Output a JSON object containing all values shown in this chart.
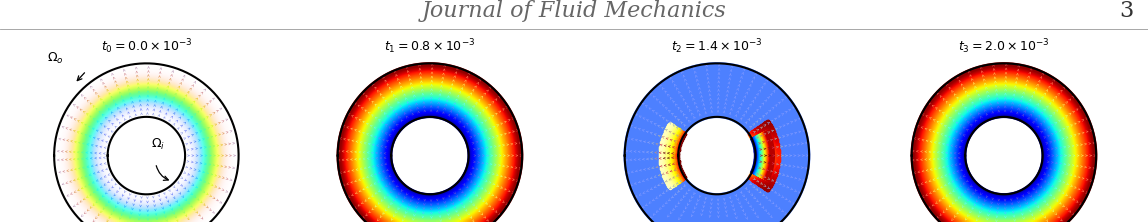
{
  "journal_title": "Journal of Fluid Mechanics",
  "page_number": "3",
  "title_fontsize": 16,
  "page_fontsize": 16,
  "background_color": "#ffffff",
  "panel_labels": [
    "$t_0 =0.0\\times 10^{-3}$",
    "$t_1 =0.8\\times 10^{-3}$",
    "$t_2 =1.4\\times 10^{-3}$",
    "$t_3 =2.0\\times 10^{-3}$"
  ],
  "label_fontsize": 9,
  "r_inner": 0.42,
  "r_outer": 1.0,
  "figsize": [
    11.48,
    2.22
  ],
  "dpi": 100
}
